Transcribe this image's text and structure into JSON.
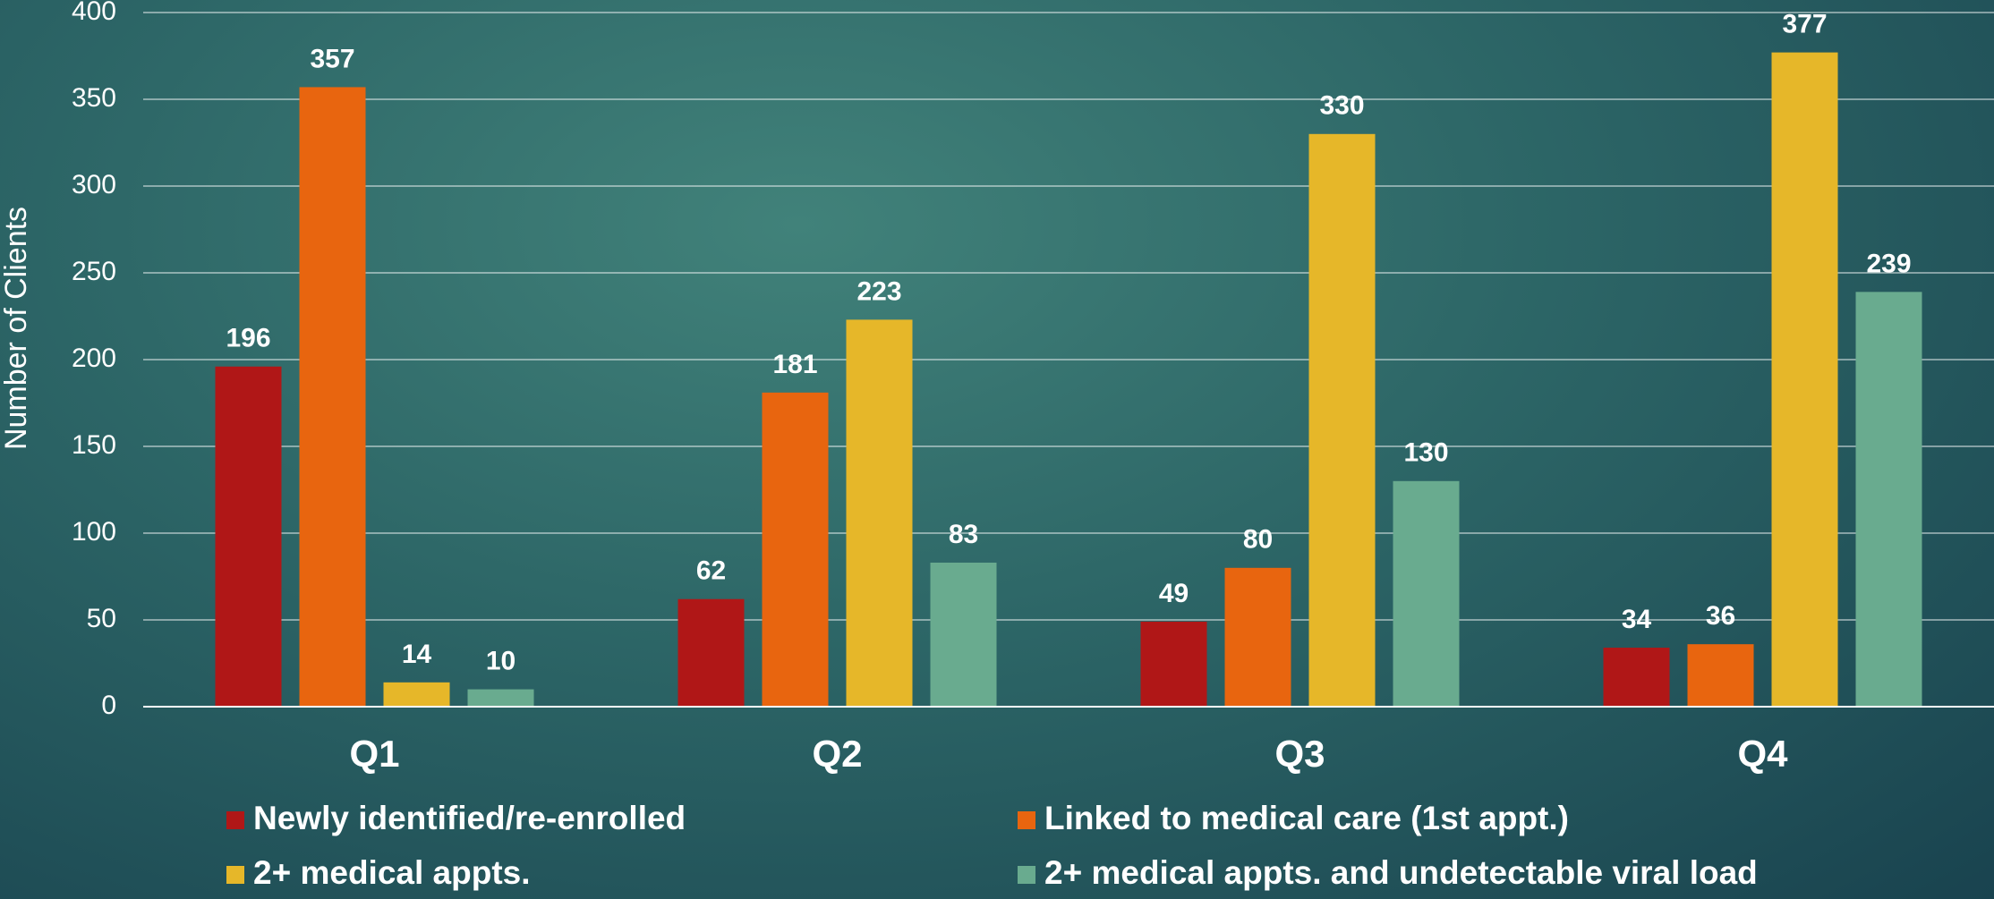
{
  "chart_data": {
    "type": "bar",
    "y_label": "Number of Clients",
    "categories": [
      "Q1",
      "Q2",
      "Q3",
      "Q4"
    ],
    "series": [
      {
        "name": "Newly identified/re-enrolled",
        "color": "#b01717",
        "values": [
          196,
          62,
          49,
          34
        ]
      },
      {
        "name": "Linked to medical care (1st appt.)",
        "color": "#e8650f",
        "values": [
          357,
          181,
          80,
          36
        ]
      },
      {
        "name": "2+ medical appts.",
        "color": "#e6b729",
        "values": [
          14,
          223,
          330,
          377
        ]
      },
      {
        "name": "2+ medical appts. and undetectable viral load",
        "color": "#69ab8f",
        "values": [
          10,
          83,
          130,
          239
        ]
      }
    ],
    "ylim": [
      0,
      400
    ],
    "yticks": [
      0,
      50,
      100,
      150,
      200,
      250,
      300,
      350,
      400
    ],
    "grid": true,
    "legend": "bottom"
  }
}
